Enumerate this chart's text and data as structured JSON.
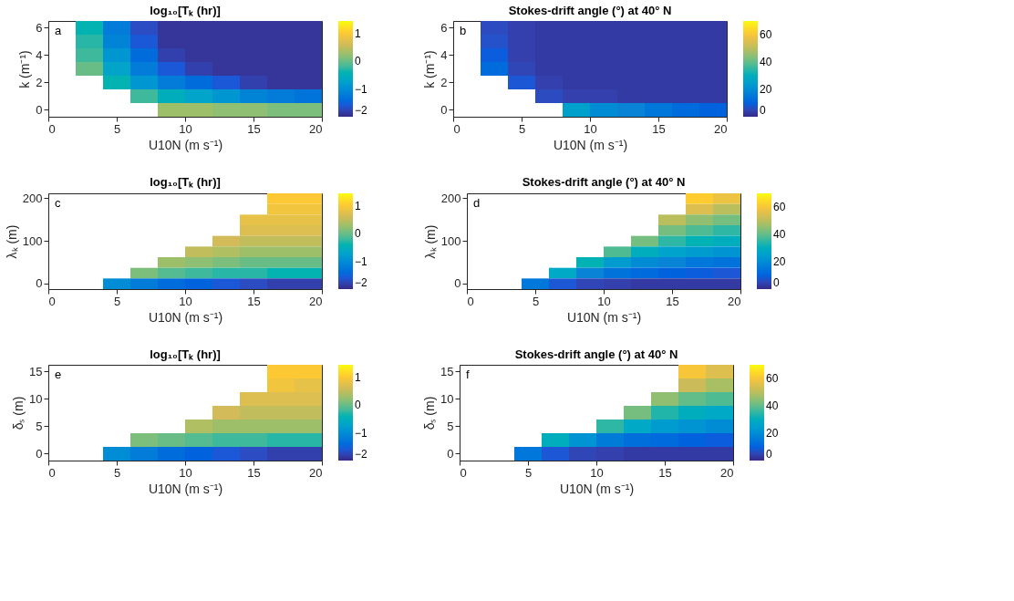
{
  "chart_data": [
    {
      "type": "heatmap",
      "title": "log₁₀[Tₖ (hr)]",
      "xlabel": "U10N (m s⁻¹)",
      "ylabel": "k (m⁻¹)",
      "annotations": [
        "a"
      ],
      "x": [
        1,
        3,
        5,
        7,
        9,
        11,
        13,
        15,
        17,
        19
      ],
      "y_categories": [
        "6",
        null,
        "4",
        null,
        "2",
        null,
        "0"
      ],
      "cells": [
        [
          null,
          -0.4,
          -1.2,
          -1.7,
          -1.9,
          -1.9,
          -1.9,
          -1.9,
          -1.9,
          -1.9
        ],
        [
          null,
          -0.3,
          -1.1,
          -1.6,
          -1.9,
          -1.9,
          -1.9,
          -1.9,
          -1.9,
          -1.9
        ],
        [
          null,
          -0.2,
          -0.9,
          -1.4,
          -1.8,
          -1.9,
          -1.9,
          -1.9,
          -1.9,
          -1.9
        ],
        [
          null,
          0.0,
          -0.7,
          -1.2,
          -1.6,
          -1.8,
          -1.9,
          -1.9,
          -1.9,
          -1.9
        ],
        [
          null,
          null,
          -0.4,
          -0.9,
          -1.2,
          -1.4,
          -1.6,
          -1.8,
          -1.9,
          -1.9
        ],
        [
          null,
          null,
          null,
          -0.2,
          -0.5,
          -0.7,
          -0.9,
          -1.1,
          -1.2,
          -1.3
        ],
        [
          null,
          null,
          null,
          null,
          0.3,
          0.3,
          0.2,
          0.2,
          0.1,
          0.1
        ]
      ],
      "xlim": [
        0,
        20
      ],
      "xticks": [
        0,
        5,
        10,
        15,
        20
      ],
      "clim": [
        -2,
        1.45
      ],
      "cticks": [
        -2,
        -1,
        0,
        1
      ]
    },
    {
      "type": "heatmap",
      "title": "Stokes-drift angle (°) at 40° N",
      "xlabel": "U10N (m s⁻¹)",
      "ylabel": "k (m⁻¹)",
      "annotations": [
        "b"
      ],
      "x": [
        1,
        3,
        5,
        7,
        9,
        11,
        13,
        15,
        17,
        19
      ],
      "y_categories": [
        "6",
        null,
        "4",
        null,
        "2",
        null,
        "0"
      ],
      "cells": [
        [
          null,
          6,
          4,
          3,
          3,
          3,
          3,
          3,
          3,
          3
        ],
        [
          null,
          7,
          4,
          3,
          3,
          3,
          3,
          3,
          3,
          3
        ],
        [
          null,
          9,
          4,
          3,
          3,
          3,
          3,
          3,
          3,
          3
        ],
        [
          null,
          12,
          5,
          3,
          3,
          3,
          3,
          3,
          3,
          3
        ],
        [
          null,
          null,
          8,
          4,
          3,
          3,
          3,
          3,
          3,
          3
        ],
        [
          null,
          null,
          null,
          6,
          4,
          4,
          3,
          3,
          3,
          3
        ],
        [
          null,
          null,
          null,
          null,
          25,
          20,
          18,
          15,
          12,
          10
        ]
      ],
      "xlim": [
        0,
        20
      ],
      "xticks": [
        0,
        5,
        10,
        15,
        20
      ],
      "clim": [
        0,
        70
      ],
      "cticks": [
        0,
        20,
        40,
        60
      ]
    },
    {
      "type": "heatmap",
      "title": "log₁₀[Tₖ (hr)]",
      "xlabel": "U10N (m s⁻¹)",
      "ylabel": "λₖ (m)",
      "annotations": [
        "c"
      ],
      "x": [
        1,
        3,
        5,
        7,
        9,
        11,
        13,
        15,
        17,
        19
      ],
      "y_categories": [
        "200",
        null,
        null,
        null,
        "100",
        null,
        null,
        null,
        "0"
      ],
      "cells": [
        [
          null,
          null,
          null,
          null,
          null,
          null,
          null,
          null,
          1.0,
          1.0
        ],
        [
          null,
          null,
          null,
          null,
          null,
          null,
          null,
          null,
          0.9,
          0.9
        ],
        [
          null,
          null,
          null,
          null,
          null,
          null,
          null,
          0.8,
          0.8,
          0.8
        ],
        [
          null,
          null,
          null,
          null,
          null,
          null,
          null,
          0.7,
          0.7,
          0.7
        ],
        [
          null,
          null,
          null,
          null,
          null,
          null,
          0.6,
          0.5,
          0.5,
          0.5
        ],
        [
          null,
          null,
          null,
          null,
          null,
          0.5,
          0.4,
          0.3,
          0.3,
          0.3
        ],
        [
          null,
          null,
          null,
          null,
          0.3,
          0.2,
          0.1,
          0.0,
          0.0,
          0.0
        ],
        [
          null,
          null,
          null,
          0.1,
          -0.1,
          -0.2,
          -0.3,
          -0.3,
          -0.4,
          -0.4
        ],
        [
          null,
          null,
          -1.0,
          -1.2,
          -1.4,
          -1.5,
          -1.6,
          -1.7,
          -1.8,
          -1.8
        ]
      ],
      "xlim": [
        0,
        20
      ],
      "xticks": [
        0,
        5,
        10,
        15,
        20
      ],
      "clim": [
        -2,
        1.45
      ],
      "cticks": [
        -2,
        -1,
        0,
        1
      ]
    },
    {
      "type": "heatmap",
      "title": "Stokes-drift angle (°) at 40° N",
      "xlabel": "U10N (m s⁻¹)",
      "ylabel": "λₖ (m)",
      "annotations": [
        "d"
      ],
      "x": [
        1,
        3,
        5,
        7,
        9,
        11,
        13,
        15,
        17,
        19
      ],
      "y_categories": [
        "200",
        null,
        null,
        null,
        "100",
        null,
        null,
        null,
        "0"
      ],
      "cells": [
        [
          null,
          null,
          null,
          null,
          null,
          null,
          null,
          null,
          62,
          58
        ],
        [
          null,
          null,
          null,
          null,
          null,
          null,
          null,
          null,
          55,
          50
        ],
        [
          null,
          null,
          null,
          null,
          null,
          null,
          null,
          50,
          45,
          42
        ],
        [
          null,
          null,
          null,
          null,
          null,
          null,
          null,
          42,
          38,
          35
        ],
        [
          null,
          null,
          null,
          null,
          null,
          null,
          42,
          35,
          32,
          30
        ],
        [
          null,
          null,
          null,
          null,
          null,
          38,
          30,
          26,
          24,
          22
        ],
        [
          null,
          null,
          null,
          null,
          32,
          24,
          20,
          18,
          15,
          14
        ],
        [
          null,
          null,
          null,
          28,
          18,
          14,
          12,
          10,
          9,
          8
        ],
        [
          null,
          null,
          15,
          8,
          5,
          4,
          3,
          3,
          3,
          3
        ]
      ],
      "xlim": [
        0,
        20
      ],
      "xticks": [
        0,
        5,
        10,
        15,
        20
      ],
      "clim": [
        0,
        70
      ],
      "cticks": [
        0,
        20,
        40,
        60
      ]
    },
    {
      "type": "heatmap",
      "title": "log₁₀[Tₖ (hr)]",
      "xlabel": "U10N (m s⁻¹)",
      "ylabel": "δₛ (m)",
      "annotations": [
        "e"
      ],
      "x": [
        1,
        3,
        5,
        7,
        9,
        11,
        13,
        15,
        17,
        19
      ],
      "y_categories": [
        "15",
        null,
        "10",
        null,
        "5",
        null,
        "0"
      ],
      "cells": [
        [
          null,
          null,
          null,
          null,
          null,
          null,
          null,
          null,
          1.0,
          1.0
        ],
        [
          null,
          null,
          null,
          null,
          null,
          null,
          null,
          null,
          0.9,
          0.8
        ],
        [
          null,
          null,
          null,
          null,
          null,
          null,
          null,
          0.7,
          0.7,
          0.7
        ],
        [
          null,
          null,
          null,
          null,
          null,
          null,
          0.6,
          0.5,
          0.5,
          0.5
        ],
        [
          null,
          null,
          null,
          null,
          null,
          0.4,
          0.3,
          0.3,
          0.3,
          0.3
        ],
        [
          null,
          null,
          null,
          0.1,
          0.0,
          -0.1,
          -0.2,
          -0.2,
          -0.3,
          -0.3
        ],
        [
          null,
          null,
          -1.0,
          -1.2,
          -1.4,
          -1.5,
          -1.6,
          -1.7,
          -1.8,
          -1.8
        ]
      ],
      "xlim": [
        0,
        20
      ],
      "xticks": [
        0,
        5,
        10,
        15,
        20
      ],
      "clim": [
        -2,
        1.45
      ],
      "cticks": [
        -2,
        -1,
        0,
        1
      ]
    },
    {
      "type": "heatmap",
      "title": "Stokes-drift angle (°) at 40° N",
      "xlabel": "U10N (m s⁻¹)",
      "ylabel": "δₛ (m)",
      "annotations": [
        "f"
      ],
      "x": [
        1,
        3,
        5,
        7,
        9,
        11,
        13,
        15,
        17,
        19
      ],
      "y_categories": [
        "15",
        null,
        "10",
        null,
        "5",
        null,
        "0"
      ],
      "cells": [
        [
          null,
          null,
          null,
          null,
          null,
          null,
          null,
          null,
          60,
          55
        ],
        [
          null,
          null,
          null,
          null,
          null,
          null,
          null,
          null,
          52,
          48
        ],
        [
          null,
          null,
          null,
          null,
          null,
          null,
          null,
          45,
          40,
          38
        ],
        [
          null,
          null,
          null,
          null,
          null,
          null,
          42,
          34,
          30,
          28
        ],
        [
          null,
          null,
          null,
          null,
          null,
          35,
          28,
          24,
          22,
          20
        ],
        [
          null,
          null,
          null,
          30,
          22,
          16,
          13,
          12,
          10,
          9
        ],
        [
          null,
          null,
          15,
          8,
          5,
          4,
          3,
          3,
          3,
          3
        ]
      ],
      "xlim": [
        0,
        20
      ],
      "xticks": [
        0,
        5,
        10,
        15,
        20
      ],
      "clim": [
        0,
        70
      ],
      "cticks": [
        0,
        20,
        40,
        60
      ]
    }
  ]
}
